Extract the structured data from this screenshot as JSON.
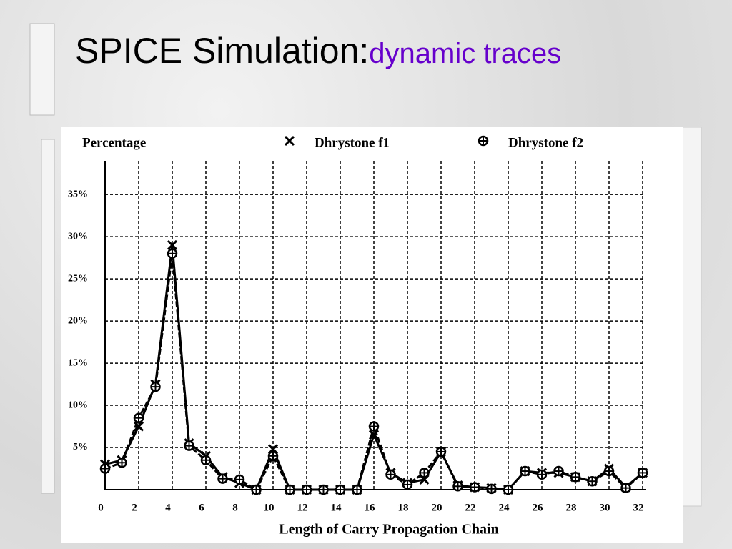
{
  "slide": {
    "title": "SPICE Simulation:",
    "subtitle": "dynamic traces"
  },
  "chart_data": {
    "type": "line",
    "y_label": "Percentage",
    "x_label": "Length of Carry Propagation Chain",
    "x": [
      0,
      1,
      2,
      3,
      4,
      5,
      6,
      7,
      8,
      9,
      10,
      11,
      12,
      13,
      14,
      15,
      16,
      17,
      18,
      19,
      20,
      21,
      22,
      23,
      24,
      25,
      26,
      27,
      28,
      29,
      30,
      31,
      32
    ],
    "series": [
      {
        "name": "Dhrystone f1",
        "color": "#000000",
        "marker": "x",
        "values": [
          3,
          3.5,
          7.5,
          12.5,
          29,
          5.5,
          4,
          1.5,
          0.8,
          0,
          4.8,
          0,
          0,
          0,
          0,
          0,
          6.5,
          2,
          0.8,
          1.2,
          4.5,
          0.5,
          0.3,
          0.2,
          0,
          2.2,
          2,
          2,
          1.5,
          1,
          2.5,
          0.3,
          2
        ]
      },
      {
        "name": "Dhrystone f2",
        "color": "#000000",
        "marker": "circle-plus",
        "values": [
          2.5,
          3.2,
          8.5,
          12.2,
          28,
          5.2,
          3.5,
          1.3,
          1.2,
          0,
          4,
          0,
          0,
          0,
          0,
          0,
          7.5,
          1.8,
          0.6,
          2,
          4.5,
          0.4,
          0.3,
          0.1,
          0,
          2.2,
          1.8,
          2.2,
          1.5,
          1,
          2.2,
          0.2,
          2
        ]
      }
    ],
    "xlim": [
      0,
      32
    ],
    "xticks": [
      0,
      2,
      4,
      6,
      8,
      10,
      12,
      14,
      16,
      18,
      20,
      22,
      24,
      26,
      28,
      30,
      32
    ],
    "ylim": [
      0,
      39
    ],
    "yticks": [
      {
        "value": 5,
        "label": "5%"
      },
      {
        "value": 10,
        "label": "10%"
      },
      {
        "value": 15,
        "label": "15%"
      },
      {
        "value": 20,
        "label": "20%"
      },
      {
        "value": 25,
        "label": "25%"
      },
      {
        "value": 30,
        "label": "30%"
      },
      {
        "value": 35,
        "label": "35%"
      }
    ],
    "grid": true
  }
}
